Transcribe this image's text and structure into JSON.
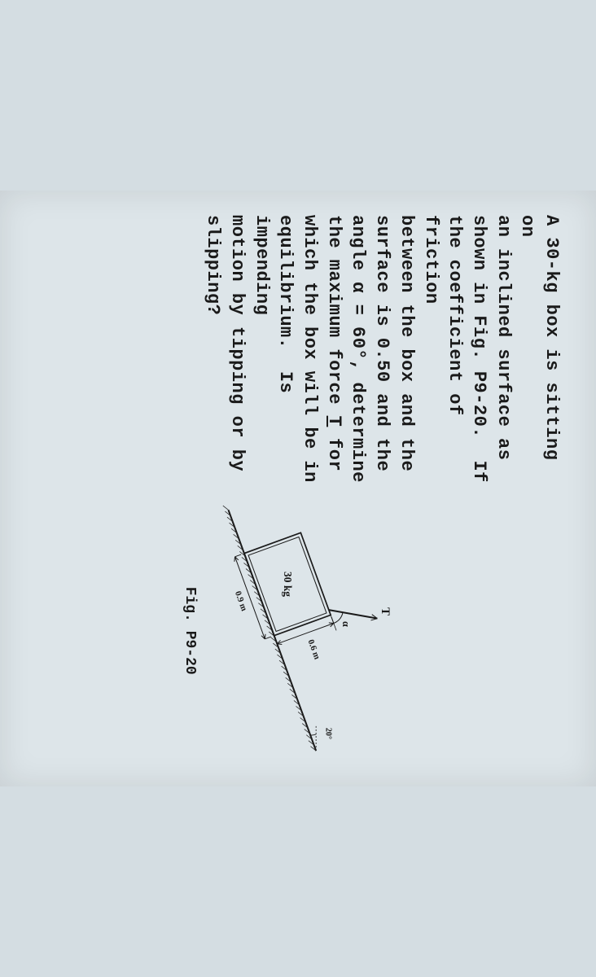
{
  "problem": {
    "line1": "A 30-kg box is sitting on",
    "line2": "an inclined surface as",
    "line3": "shown in Fig. P9-20.  If",
    "line4": "the coefficient of friction",
    "line5": "between the box and the",
    "line6": "surface is 0.50 and the",
    "line7": "angle α = 60°, determine",
    "line8": "the maximum force ",
    "line8_bold": "T",
    "line8_end": " for",
    "line9": "which the box will be in",
    "line10": "equilibrium.  Is impending",
    "line11": "motion by tipping or by",
    "line12": "slipping?"
  },
  "figure": {
    "caption": "Fig. P9-20",
    "box_label": "30 kg",
    "box_width_label": "0.9 m",
    "box_height_label": "0.6 m",
    "force_label": "T",
    "angle_label": "α",
    "incline_angle_label": "20°",
    "incline_angle_deg": 20,
    "colors": {
      "stroke": "#1a1a1a",
      "text": "#1a1a1a",
      "hatch": "#2a2a2a"
    }
  }
}
